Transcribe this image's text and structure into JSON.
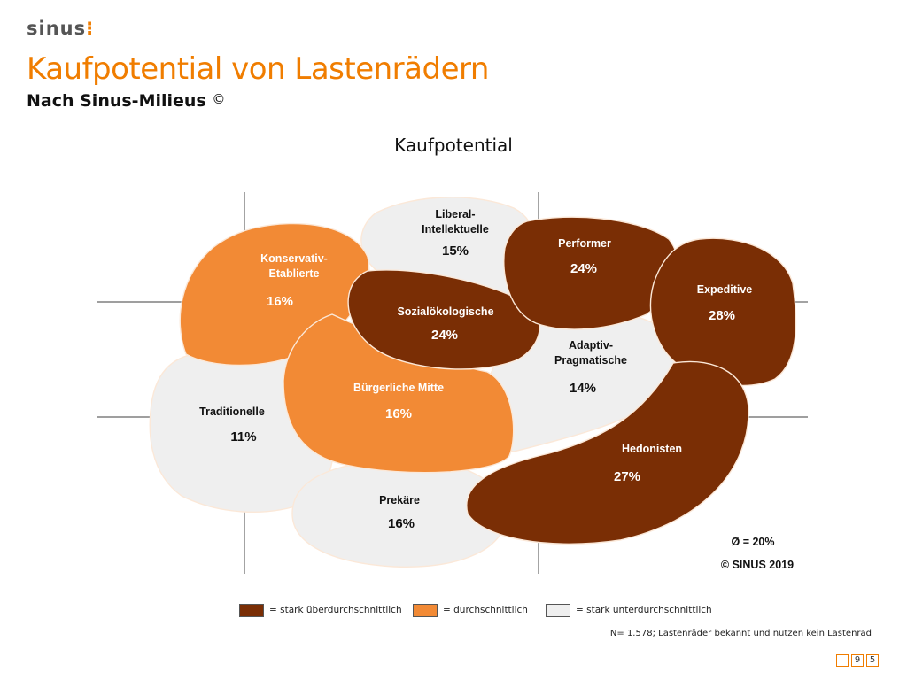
{
  "brand": {
    "name": "sinus",
    "mark": "⁝"
  },
  "title": "Kaufpotential von Lastenrädern",
  "subtitle": "Nach Sinus-Milieus",
  "subtitle_mark": "©",
  "chart_heading": "Kaufpotential",
  "colors": {
    "dark": "#7a2e05",
    "medium": "#f28a35",
    "light": "#efefef",
    "accent": "#f07d00"
  },
  "milieus": [
    {
      "id": "konservativ-etablierte",
      "label": "Konservativ-\nEtablierte",
      "value": "16%",
      "category": "medium"
    },
    {
      "id": "liberal-intellektuelle",
      "label": "Liberal-\nIntellektuelle",
      "value": "15%",
      "category": "light"
    },
    {
      "id": "performer",
      "label": "Performer",
      "value": "24%",
      "category": "dark"
    },
    {
      "id": "expeditive",
      "label": "Expeditive",
      "value": "28%",
      "category": "dark"
    },
    {
      "id": "sozialoekologische",
      "label": "Sozialökologische",
      "value": "24%",
      "category": "dark"
    },
    {
      "id": "adaptiv-pragmatische",
      "label": "Adaptiv-\nPragmatische",
      "value": "14%",
      "category": "light"
    },
    {
      "id": "traditionelle",
      "label": "Traditionelle",
      "value": "11%",
      "category": "light"
    },
    {
      "id": "buergerliche-mitte",
      "label": "Bürgerliche Mitte",
      "value": "16%",
      "category": "medium"
    },
    {
      "id": "hedonisten",
      "label": "Hedonisten",
      "value": "27%",
      "category": "dark"
    },
    {
      "id": "prekaere",
      "label": "Prekäre",
      "value": "16%",
      "category": "light"
    }
  ],
  "average": "Ø = 20%",
  "copyright": "© SINUS 2019",
  "legend": [
    {
      "category": "dark",
      "label": "= stark überdurchschnittlich"
    },
    {
      "category": "medium",
      "label": "= durchschnittlich"
    },
    {
      "category": "light",
      "label": "= stark unterdurchschnittlich"
    }
  ],
  "footnote": "N= 1.578; Lastenräder bekannt und nutzen kein Lastenrad",
  "pager": {
    "digit1": "9",
    "digit2": "5"
  }
}
